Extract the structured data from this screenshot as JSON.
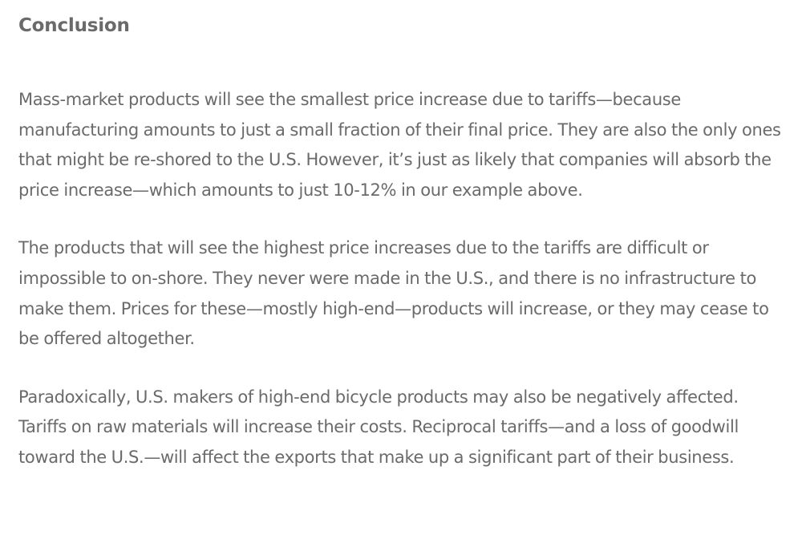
{
  "article": {
    "heading": "Conclusion",
    "paragraphs": [
      "Mass-market products will see the smallest price increase due to tariffs—because manufacturing amounts to just a small fraction of their final price. They are also the only ones that might be re-shored to the U.S. However, it’s just as likely that companies will absorb the price increase—which amounts to just 10-12% in our example above.",
      "The products that will see the highest price increases due to the tariffs are difficult or impossible to on-shore. They never were made in the U.S., and there is no infrastructure to make them. Prices for these—mostly high-end—products will increase, or they may cease to be offered altogether.",
      "Paradoxically, U.S. makers of high-end bicycle products may also be negatively affected. Tariffs on raw materials will increase their costs. Reciprocal tariffs—and a loss of goodwill toward the U.S.—will affect the exports that make up a significant part of their business."
    ]
  }
}
